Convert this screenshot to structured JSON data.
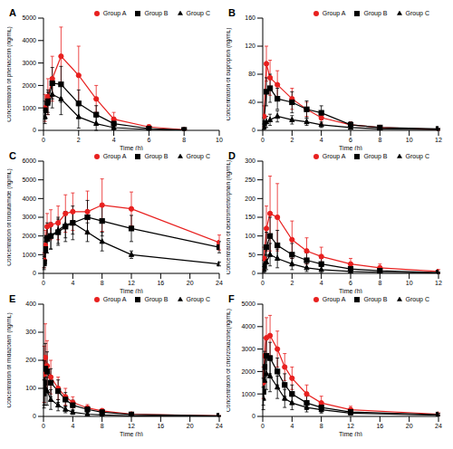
{
  "chart_data": [
    {
      "type": "line",
      "title": "A",
      "x_label": "Time (h)",
      "y_label": "Concentration of phenacetin (ng/mL)",
      "x": [
        0.083,
        0.25,
        0.5,
        1,
        2,
        3,
        4,
        6,
        8
      ],
      "xlim": [
        0,
        10
      ],
      "xticks": [
        0,
        2,
        4,
        6,
        8,
        10
      ],
      "ylim": [
        0,
        5000
      ],
      "yticks": [
        0,
        1000,
        2000,
        3000,
        4000,
        5000
      ],
      "legend": "upper right",
      "series": [
        {
          "name": "Group A",
          "color": "#e8201f",
          "marker": "circle",
          "values": [
            1000,
            1500,
            2300,
            3300,
            2450,
            1400,
            500,
            150,
            30
          ],
          "errors": [
            600,
            800,
            1000,
            1300,
            1300,
            600,
            300,
            100,
            30
          ]
        },
        {
          "name": "Group B",
          "color": "#000000",
          "marker": "square",
          "values": [
            900,
            1300,
            2100,
            2050,
            1200,
            700,
            300,
            80,
            20
          ],
          "errors": [
            400,
            500,
            700,
            800,
            600,
            400,
            200,
            60,
            20
          ]
        },
        {
          "name": "Group C",
          "color": "#000000",
          "marker": "triangle",
          "values": [
            600,
            1200,
            1600,
            1400,
            600,
            300,
            120,
            40,
            10
          ],
          "errors": [
            300,
            500,
            600,
            700,
            500,
            300,
            100,
            40,
            10
          ]
        }
      ]
    },
    {
      "type": "line",
      "title": "B",
      "x_label": "Time (h)",
      "y_label": "Concentration of bupropion (ng/mL)",
      "x": [
        0.083,
        0.25,
        0.5,
        1,
        2,
        3,
        4,
        6,
        8,
        12
      ],
      "xlim": [
        0,
        12
      ],
      "xticks": [
        0,
        2,
        4,
        6,
        8,
        10,
        12
      ],
      "ylim": [
        0,
        160
      ],
      "yticks": [
        0,
        40,
        80,
        120,
        160
      ],
      "legend": "upper right",
      "series": [
        {
          "name": "Group A",
          "color": "#e8201f",
          "marker": "circle",
          "values": [
            20,
            95,
            75,
            65,
            45,
            30,
            18,
            8,
            4,
            1
          ],
          "errors": [
            15,
            25,
            25,
            20,
            15,
            10,
            8,
            4,
            2,
            1
          ]
        },
        {
          "name": "Group B",
          "color": "#000000",
          "marker": "square",
          "values": [
            10,
            55,
            60,
            45,
            40,
            30,
            25,
            8,
            4,
            2
          ],
          "errors": [
            8,
            20,
            20,
            15,
            15,
            12,
            10,
            4,
            2,
            1
          ]
        },
        {
          "name": "Group C",
          "color": "#000000",
          "marker": "triangle",
          "values": [
            5,
            12,
            15,
            20,
            15,
            12,
            8,
            4,
            2,
            1
          ],
          "errors": [
            4,
            8,
            8,
            8,
            6,
            5,
            4,
            2,
            1,
            1
          ]
        }
      ]
    },
    {
      "type": "line",
      "title": "C",
      "x_label": "Time (h)",
      "y_label": "Concentration of tolbutamide (ng/mL)",
      "x": [
        0.083,
        0.25,
        0.5,
        1,
        2,
        3,
        4,
        6,
        8,
        12,
        24
      ],
      "xlim": [
        0,
        24
      ],
      "xticks": [
        0,
        4,
        8,
        12,
        16,
        20,
        24
      ],
      "ylim": [
        0,
        6000
      ],
      "yticks": [
        0,
        1000,
        2000,
        3000,
        4000,
        5000,
        6000
      ],
      "legend": "upper right",
      "series": [
        {
          "name": "Group A",
          "color": "#e8201f",
          "marker": "circle",
          "values": [
            700,
            1500,
            2500,
            2600,
            2700,
            3200,
            3300,
            3300,
            3650,
            3450,
            1650
          ],
          "errors": [
            400,
            800,
            700,
            800,
            900,
            1000,
            1000,
            1100,
            1400,
            900,
            400
          ]
        },
        {
          "name": "Group B",
          "color": "#000000",
          "marker": "square",
          "values": [
            600,
            1300,
            1900,
            2000,
            2200,
            2500,
            2700,
            3000,
            2800,
            2400,
            1400
          ],
          "errors": [
            300,
            600,
            800,
            700,
            700,
            800,
            900,
            900,
            800,
            700,
            300
          ]
        },
        {
          "name": "Group C",
          "color": "#000000",
          "marker": "triangle",
          "values": [
            500,
            1200,
            1800,
            2000,
            2300,
            2600,
            2700,
            2200,
            1700,
            1000,
            500
          ],
          "errors": [
            300,
            500,
            700,
            700,
            700,
            700,
            600,
            500,
            500,
            200,
            100
          ]
        }
      ]
    },
    {
      "type": "line",
      "title": "D",
      "x_label": "Time (h)",
      "y_label": "Concentration of dextromethorphan (ng/mL)",
      "x": [
        0.083,
        0.25,
        0.5,
        1,
        2,
        3,
        4,
        6,
        8,
        12
      ],
      "xlim": [
        0,
        12
      ],
      "xticks": [
        0,
        2,
        4,
        6,
        8,
        10,
        12
      ],
      "ylim": [
        0,
        300
      ],
      "yticks": [
        0,
        50,
        100,
        150,
        200,
        250,
        300
      ],
      "legend": "upper right",
      "series": [
        {
          "name": "Group A",
          "color": "#e8201f",
          "marker": "circle",
          "values": [
            40,
            120,
            160,
            150,
            90,
            60,
            45,
            25,
            15,
            5
          ],
          "errors": [
            30,
            60,
            100,
            90,
            50,
            35,
            25,
            15,
            10,
            5
          ]
        },
        {
          "name": "Group B",
          "color": "#000000",
          "marker": "square",
          "values": [
            20,
            70,
            100,
            75,
            50,
            35,
            25,
            12,
            7,
            2
          ],
          "errors": [
            15,
            40,
            50,
            40,
            30,
            20,
            15,
            8,
            5,
            2
          ]
        },
        {
          "name": "Group C",
          "color": "#000000",
          "marker": "triangle",
          "values": [
            10,
            30,
            50,
            40,
            25,
            15,
            10,
            5,
            3,
            1
          ],
          "errors": [
            8,
            20,
            30,
            25,
            15,
            10,
            8,
            4,
            2,
            1
          ]
        }
      ]
    },
    {
      "type": "line",
      "title": "E",
      "x_label": "Time (h)",
      "y_label": "Concentration of midazolam (ng/mL)",
      "x": [
        0.083,
        0.25,
        0.5,
        1,
        2,
        3,
        4,
        6,
        8,
        12,
        24
      ],
      "xlim": [
        0,
        24
      ],
      "xticks": [
        0,
        4,
        8,
        12,
        16,
        20,
        24
      ],
      "ylim": [
        0,
        400
      ],
      "yticks": [
        0,
        100,
        200,
        300,
        400
      ],
      "legend": "upper right",
      "series": [
        {
          "name": "Group A",
          "color": "#e8201f",
          "marker": "circle",
          "values": [
            150,
            210,
            180,
            140,
            100,
            70,
            50,
            30,
            20,
            8,
            2
          ],
          "errors": [
            100,
            120,
            90,
            60,
            40,
            30,
            20,
            12,
            8,
            4,
            1
          ]
        },
        {
          "name": "Group B",
          "color": "#000000",
          "marker": "square",
          "values": [
            120,
            170,
            160,
            120,
            90,
            60,
            40,
            25,
            15,
            7,
            2
          ],
          "errors": [
            80,
            90,
            70,
            50,
            40,
            25,
            18,
            10,
            6,
            3,
            1
          ]
        },
        {
          "name": "Group C",
          "color": "#000000",
          "marker": "triangle",
          "values": [
            80,
            100,
            90,
            60,
            40,
            25,
            15,
            8,
            5,
            2,
            1
          ],
          "errors": [
            50,
            60,
            50,
            35,
            20,
            12,
            8,
            5,
            3,
            1,
            1
          ]
        }
      ]
    },
    {
      "type": "line",
      "title": "F",
      "x_label": "Time (h)",
      "y_label": "Concentration of chlorzoxazone(ng/mL)",
      "x": [
        0.083,
        0.25,
        0.5,
        1,
        2,
        3,
        4,
        6,
        8,
        12,
        24
      ],
      "xlim": [
        0,
        24
      ],
      "xticks": [
        0,
        4,
        8,
        12,
        16,
        20,
        24
      ],
      "ylim": [
        0,
        5000
      ],
      "yticks": [
        0,
        1000,
        2000,
        3000,
        4000,
        5000
      ],
      "legend": "upper right",
      "series": [
        {
          "name": "Group A",
          "color": "#e8201f",
          "marker": "circle",
          "values": [
            1500,
            2700,
            3500,
            3600,
            3000,
            2200,
            1700,
            1000,
            600,
            300,
            100
          ],
          "errors": [
            700,
            800,
            900,
            900,
            800,
            600,
            500,
            400,
            300,
            150,
            60
          ]
        },
        {
          "name": "Group B",
          "color": "#000000",
          "marker": "square",
          "values": [
            1100,
            2200,
            2700,
            2600,
            2000,
            1400,
            1000,
            600,
            400,
            200,
            80
          ],
          "errors": [
            600,
            700,
            800,
            700,
            600,
            500,
            400,
            300,
            200,
            100,
            50
          ]
        },
        {
          "name": "Group C",
          "color": "#000000",
          "marker": "triangle",
          "values": [
            800,
            1600,
            1900,
            1800,
            1300,
            800,
            600,
            400,
            300,
            150,
            50
          ],
          "errors": [
            500,
            600,
            700,
            700,
            500,
            400,
            300,
            200,
            150,
            80,
            30
          ]
        }
      ]
    }
  ]
}
